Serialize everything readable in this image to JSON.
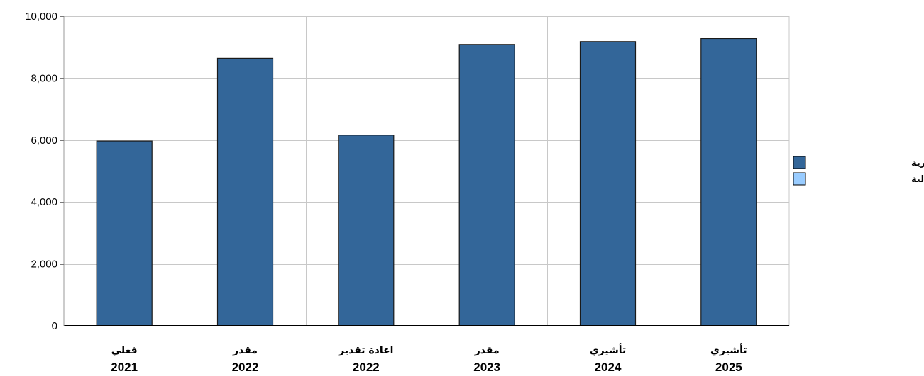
{
  "chart_data": {
    "type": "bar",
    "title": "",
    "xlabel": "",
    "ylabel": "",
    "ylim": [
      0,
      10000
    ],
    "yticks": [
      "0",
      "2,000",
      "4,000",
      "6,000",
      "8,000",
      "10,000"
    ],
    "ytick_values": [
      0,
      2000,
      4000,
      6000,
      8000,
      10000
    ],
    "grid": true,
    "legend_position": "right",
    "categories": [
      {
        "label": "فعلي",
        "year": "2021"
      },
      {
        "label": "مقدر",
        "year": "2022"
      },
      {
        "label": "اعادة تقدير",
        "year": "2022"
      },
      {
        "label": "مقدر",
        "year": "2023"
      },
      {
        "label": "تأشيري",
        "year": "2024"
      },
      {
        "label": "تأشيري",
        "year": "2025"
      }
    ],
    "series": [
      {
        "name": "النفقات الجارية",
        "color": "#336699",
        "values": [
          5970,
          8640,
          6160,
          9090,
          9180,
          9280
        ]
      },
      {
        "name": "النفقات الرأسمالية",
        "color": "#99ccff",
        "values": [
          0,
          0,
          0,
          0,
          0,
          0
        ]
      }
    ]
  }
}
